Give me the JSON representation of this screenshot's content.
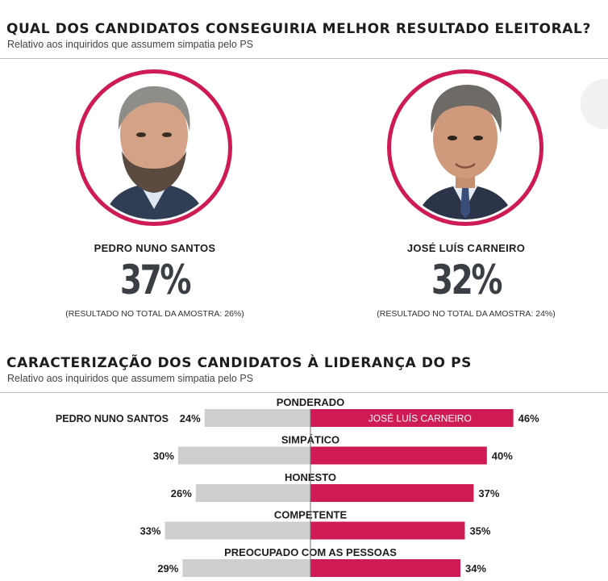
{
  "section1": {
    "title": "QUAL DOS CANDIDATOS CONSEGUIRIA MELHOR RESULTADO ELEITORAL?",
    "subtitle": "Relativo aos inquiridos que assumem simpatia pelo PS",
    "candidates": [
      {
        "name": "PEDRO NUNO SANTOS",
        "percent": "37%",
        "note": "(RESULTADO NO TOTAL DA AMOSTRA: 26%)"
      },
      {
        "name": "JOSÉ LUÍS CARNEIRO",
        "percent": "32%",
        "note": "(RESULTADO NO TOTAL DA AMOSTRA: 24%)"
      }
    ]
  },
  "section2": {
    "title": "CARACTERIZAÇÃO DOS CANDIDATOS À LIDERANÇA DO PS",
    "subtitle": "Relativo aos inquiridos que assumem simpatia pelo PS"
  },
  "colors": {
    "accent": "#cf1b53",
    "left_bar": "#cfcdcd",
    "divider": "#6f6f6f"
  },
  "chart_data": {
    "type": "bar",
    "title": "CARACTERIZAÇÃO DOS CANDIDATOS À LIDERANÇA DO PS",
    "categories": [
      "PONDERADO",
      "SIMPÁTICO",
      "HONESTO",
      "COMPETENTE",
      "PREOCUPADO COM AS PESSOAS"
    ],
    "series": [
      {
        "name": "PEDRO NUNO SANTOS",
        "values": [
          24,
          30,
          26,
          33,
          29
        ],
        "value_labels": [
          "24%",
          "30%",
          "26%",
          "33%",
          "29%"
        ],
        "color": "#cfcdcd"
      },
      {
        "name": "JOSÉ LUÍS CARNEIRO",
        "values": [
          46,
          40,
          37,
          35,
          34
        ],
        "value_labels": [
          "46%",
          "40%",
          "37%",
          "35%",
          "34%"
        ],
        "color": "#cf1b53"
      }
    ]
  }
}
